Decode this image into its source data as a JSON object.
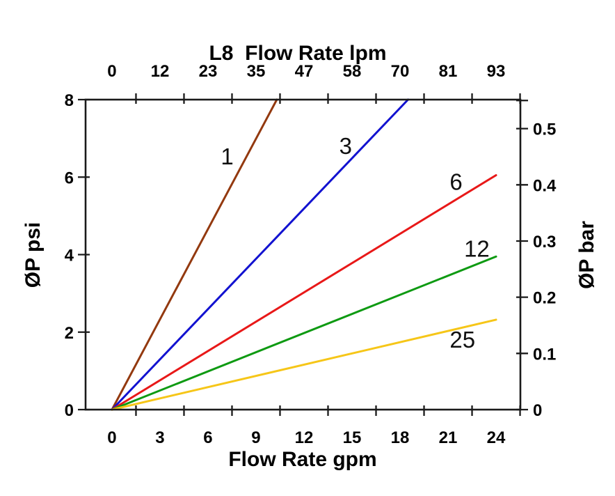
{
  "chart_data": {
    "type": "line",
    "description": "Pressure drop vs flow rate curves for L8 models 1, 3, 6, 12, 25",
    "top_axis": {
      "title": "L8  Flow Rate lpm",
      "labels": [
        "0",
        "12",
        "23",
        "35",
        "47",
        "58",
        "70",
        "81",
        "93"
      ],
      "label_positions_gpm": [
        0,
        3,
        6,
        9,
        12,
        15,
        18,
        21,
        24
      ]
    },
    "bottom_axis": {
      "title": "Flow Rate gpm",
      "labels": [
        "0",
        "3",
        "6",
        "9",
        "12",
        "15",
        "18",
        "21",
        "24"
      ],
      "label_values": [
        0,
        3,
        6,
        9,
        12,
        15,
        18,
        21,
        24
      ],
      "tick_values": [
        1.5,
        4.5,
        7.5,
        10.5,
        13.5,
        16.5,
        19.5,
        22.5,
        25.5
      ]
    },
    "left_axis": {
      "title": "ØP psi",
      "labels": [
        "0",
        "2",
        "4",
        "6",
        "8"
      ],
      "values": [
        0,
        2,
        4,
        6,
        8
      ]
    },
    "right_axis": {
      "title": "ØP bar",
      "labels": [
        "0",
        "0.1",
        "0.2",
        "0.3",
        "0.4",
        "0.5"
      ],
      "values_bar": [
        0,
        0.1,
        0.2,
        0.3,
        0.4,
        0.5
      ],
      "psi_per_bar": 14.5038,
      "extra_minor_tick_bar": 0.55
    },
    "xlim": [
      -1.65,
      25.52
    ],
    "ylim": [
      0,
      8
    ],
    "series": [
      {
        "name": "1",
        "color": "#93390F",
        "points": [
          [
            0,
            0
          ],
          [
            10.3,
            8.0
          ]
        ],
        "label_at": [
          7.2,
          6.53
        ]
      },
      {
        "name": "3",
        "color": "#1212D0",
        "points": [
          [
            0,
            0
          ],
          [
            18.5,
            8.0
          ]
        ],
        "label_at": [
          14.6,
          6.8
        ]
      },
      {
        "name": "6",
        "color": "#E81818",
        "points": [
          [
            0,
            0
          ],
          [
            24.0,
            6.05
          ]
        ],
        "label_at": [
          21.5,
          5.87
        ]
      },
      {
        "name": "12",
        "color": "#0E9A12",
        "points": [
          [
            0,
            0
          ],
          [
            24.0,
            3.95
          ]
        ],
        "label_at": [
          22.8,
          4.14
        ]
      },
      {
        "name": "25",
        "color": "#F6C618",
        "points": [
          [
            0,
            0
          ],
          [
            24.0,
            2.32
          ]
        ],
        "label_at": [
          21.9,
          1.8
        ]
      }
    ]
  }
}
